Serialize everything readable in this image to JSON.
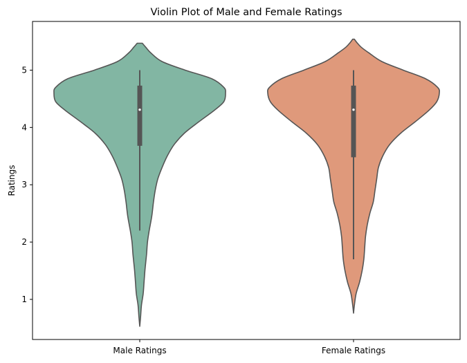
{
  "chart_data": {
    "type": "violin",
    "title": "Violin Plot of Male and Female Ratings",
    "xlabel": "",
    "ylabel": "Ratings",
    "categories": [
      "Male Ratings",
      "Female Ratings"
    ],
    "ylim": [
      0.3,
      5.85
    ],
    "yticks": [
      1,
      2,
      3,
      4,
      5
    ],
    "grid": false,
    "legend": "none",
    "colors": {
      "Male Ratings": "#82b6a3",
      "Female Ratings": "#df997b",
      "outline": "#555555",
      "box": "#555555",
      "median": "#ffffff"
    },
    "violins": [
      {
        "name": "Male Ratings",
        "box": {
          "whisker_low": 2.2,
          "q1": 3.68,
          "median": 4.31,
          "q3": 4.73,
          "whisker_high": 5.0
        },
        "density": [
          [
            0.53,
            0.0
          ],
          [
            0.7,
            0.01
          ],
          [
            0.9,
            0.02
          ],
          [
            1.1,
            0.04
          ],
          [
            1.3,
            0.05
          ],
          [
            1.5,
            0.06
          ],
          [
            1.65,
            0.07
          ],
          [
            1.8,
            0.08
          ],
          [
            2.0,
            0.09
          ],
          [
            2.2,
            0.11
          ],
          [
            2.45,
            0.14
          ],
          [
            2.7,
            0.16
          ],
          [
            2.9,
            0.18
          ],
          [
            3.1,
            0.21
          ],
          [
            3.3,
            0.26
          ],
          [
            3.5,
            0.32
          ],
          [
            3.7,
            0.4
          ],
          [
            3.9,
            0.52
          ],
          [
            4.1,
            0.69
          ],
          [
            4.3,
            0.87
          ],
          [
            4.45,
            0.98
          ],
          [
            4.6,
            1.0
          ],
          [
            4.7,
            0.98
          ],
          [
            4.85,
            0.84
          ],
          [
            5.0,
            0.53
          ],
          [
            5.15,
            0.26
          ],
          [
            5.3,
            0.13
          ],
          [
            5.4,
            0.07
          ],
          [
            5.47,
            0.03
          ]
        ]
      },
      {
        "name": "Female Ratings",
        "box": {
          "whisker_low": 1.7,
          "q1": 3.48,
          "median": 4.31,
          "q3": 4.73,
          "whisker_high": 5.0
        },
        "density": [
          [
            0.76,
            0.0
          ],
          [
            0.9,
            0.01
          ],
          [
            1.1,
            0.03
          ],
          [
            1.3,
            0.07
          ],
          [
            1.5,
            0.1
          ],
          [
            1.7,
            0.12
          ],
          [
            1.9,
            0.13
          ],
          [
            2.1,
            0.14
          ],
          [
            2.3,
            0.16
          ],
          [
            2.5,
            0.19
          ],
          [
            2.7,
            0.23
          ],
          [
            2.9,
            0.25
          ],
          [
            3.1,
            0.27
          ],
          [
            3.3,
            0.29
          ],
          [
            3.5,
            0.34
          ],
          [
            3.7,
            0.42
          ],
          [
            3.9,
            0.55
          ],
          [
            4.1,
            0.72
          ],
          [
            4.3,
            0.88
          ],
          [
            4.45,
            0.97
          ],
          [
            4.6,
            1.0
          ],
          [
            4.7,
            0.98
          ],
          [
            4.85,
            0.84
          ],
          [
            5.0,
            0.58
          ],
          [
            5.15,
            0.33
          ],
          [
            5.3,
            0.18
          ],
          [
            5.4,
            0.09
          ],
          [
            5.48,
            0.04
          ],
          [
            5.54,
            0.01
          ]
        ]
      }
    ]
  }
}
